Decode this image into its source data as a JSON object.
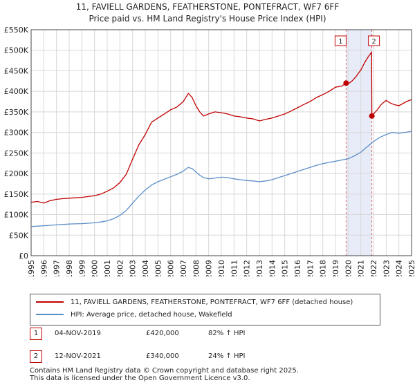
{
  "chart_data": {
    "type": "line",
    "title": "11, FAVIELL GARDENS, FEATHERSTONE, PONTEFRACT, WF7 6FF",
    "subtitle": "Price paid vs. HM Land Registry's House Price Index (HPI)",
    "xlim": [
      1995,
      2025
    ],
    "ylim": [
      0,
      550000
    ],
    "x_ticks": [
      "1995",
      "1996",
      "1997",
      "1998",
      "1999",
      "2000",
      "2001",
      "2002",
      "2003",
      "2004",
      "2005",
      "2006",
      "2007",
      "2008",
      "2009",
      "2010",
      "2011",
      "2012",
      "2013",
      "2014",
      "2015",
      "2016",
      "2017",
      "2018",
      "2019",
      "2020",
      "2021",
      "2022",
      "2023",
      "2024",
      "2025"
    ],
    "y_ticks": [
      {
        "value": 0,
        "label": "£0"
      },
      {
        "value": 50000,
        "label": "£50K"
      },
      {
        "value": 100000,
        "label": "£100K"
      },
      {
        "value": 150000,
        "label": "£150K"
      },
      {
        "value": 200000,
        "label": "£200K"
      },
      {
        "value": 250000,
        "label": "£250K"
      },
      {
        "value": 300000,
        "label": "£300K"
      },
      {
        "value": 350000,
        "label": "£350K"
      },
      {
        "value": 400000,
        "label": "£400K"
      },
      {
        "value": 450000,
        "label": "£450K"
      },
      {
        "value": 500000,
        "label": "£500K"
      },
      {
        "value": 550000,
        "label": "£550K"
      }
    ],
    "series": [
      {
        "name": "11, FAVIELL GARDENS, FEATHERSTONE, PONTEFRACT, WF7 6FF (detached house)",
        "color": "#c00000",
        "x": [
          1995.0,
          1995.5,
          1996.0,
          1996.5,
          1997.0,
          1997.5,
          1998.0,
          1998.5,
          1999.0,
          1999.5,
          2000.0,
          2000.5,
          2001.0,
          2001.5,
          2002.0,
          2002.5,
          2003.0,
          2003.5,
          2004.0,
          2004.5,
          2005.0,
          2005.5,
          2006.0,
          2006.5,
          2007.0,
          2007.4,
          2007.7,
          2008.0,
          2008.3,
          2008.6,
          2009.0,
          2009.5,
          2010.0,
          2010.5,
          2011.0,
          2011.5,
          2012.0,
          2012.5,
          2013.0,
          2013.5,
          2014.0,
          2014.5,
          2015.0,
          2015.5,
          2016.0,
          2016.5,
          2017.0,
          2017.5,
          2018.0,
          2018.5,
          2019.0,
          2019.5,
          2019.84,
          2020.0,
          2020.3,
          2020.6,
          2021.0,
          2021.3,
          2021.6,
          2021.85,
          2021.87,
          2022.0,
          2022.3,
          2022.6,
          2023.0,
          2023.3,
          2023.6,
          2024.0,
          2024.3,
          2024.6,
          2025.0
        ],
        "y": [
          130000,
          132000,
          128000,
          134000,
          137000,
          139000,
          140000,
          141000,
          142000,
          144000,
          146000,
          150000,
          157000,
          165000,
          178000,
          198000,
          235000,
          270000,
          295000,
          325000,
          335000,
          345000,
          355000,
          362000,
          375000,
          395000,
          385000,
          365000,
          350000,
          340000,
          345000,
          350000,
          348000,
          345000,
          340000,
          338000,
          335000,
          333000,
          328000,
          332000,
          335000,
          340000,
          345000,
          352000,
          360000,
          368000,
          375000,
          385000,
          392000,
          400000,
          410000,
          413000,
          420000,
          418000,
          425000,
          435000,
          452000,
          470000,
          485000,
          495000,
          340000,
          345000,
          355000,
          368000,
          378000,
          372000,
          368000,
          365000,
          370000,
          375000,
          380000
        ]
      },
      {
        "name": "HPI: Average price, detached house, Wakefield",
        "color": "#5b8ec8",
        "x": [
          1995.0,
          1995.5,
          1996.0,
          1996.5,
          1997.0,
          1997.5,
          1998.0,
          1998.5,
          1999.0,
          1999.5,
          2000.0,
          2000.5,
          2001.0,
          2001.5,
          2002.0,
          2002.5,
          2003.0,
          2003.5,
          2004.0,
          2004.5,
          2005.0,
          2005.5,
          2006.0,
          2006.5,
          2007.0,
          2007.4,
          2007.7,
          2008.0,
          2008.3,
          2008.6,
          2009.0,
          2009.5,
          2010.0,
          2010.5,
          2011.0,
          2011.5,
          2012.0,
          2012.5,
          2013.0,
          2013.5,
          2014.0,
          2014.5,
          2015.0,
          2015.5,
          2016.0,
          2016.5,
          2017.0,
          2017.5,
          2018.0,
          2018.5,
          2019.0,
          2019.5,
          2020.0,
          2020.5,
          2021.0,
          2021.5,
          2022.0,
          2022.5,
          2023.0,
          2023.5,
          2024.0,
          2024.5,
          2025.0
        ],
        "y": [
          71000,
          72000,
          73000,
          74000,
          75000,
          76000,
          77000,
          77500,
          78000,
          79000,
          80000,
          82000,
          85000,
          90000,
          98000,
          110000,
          128000,
          145000,
          160000,
          172000,
          180000,
          186000,
          192000,
          198000,
          206000,
          215000,
          212000,
          204000,
          196000,
          190000,
          187000,
          189000,
          191000,
          190000,
          187000,
          185000,
          183000,
          182000,
          180000,
          182000,
          185000,
          190000,
          195000,
          200000,
          205000,
          210000,
          215000,
          220000,
          224000,
          227000,
          230000,
          233000,
          236000,
          243000,
          252000,
          265000,
          278000,
          288000,
          295000,
          300000,
          298000,
          300000,
          303000
        ]
      }
    ],
    "annotations": [
      {
        "label": "1",
        "x": 2019.84,
        "y": 420000
      },
      {
        "label": "2",
        "x": 2021.87,
        "y": 340000
      }
    ],
    "shaded_region": [
      2019.84,
      2021.87
    ],
    "grid": true,
    "legend_position": "below"
  },
  "legend": {
    "items": [
      {
        "label": "11, FAVIELL GARDENS, FEATHERSTONE, PONTEFRACT, WF7 6FF (detached house)",
        "color": "#c00000"
      },
      {
        "label": "HPI: Average price, detached house, Wakefield",
        "color": "#5b8ec8"
      }
    ]
  },
  "sales": [
    {
      "num": "1",
      "date": "04-NOV-2019",
      "price": "£420,000",
      "hpi": "82% ↑ HPI"
    },
    {
      "num": "2",
      "date": "12-NOV-2021",
      "price": "£340,000",
      "hpi": "24% ↑ HPI"
    }
  ],
  "footer": {
    "line1": "Contains HM Land Registry data © Crown copyright and database right 2025.",
    "line2": "This data is licensed under the Open Government Licence v3.0."
  }
}
